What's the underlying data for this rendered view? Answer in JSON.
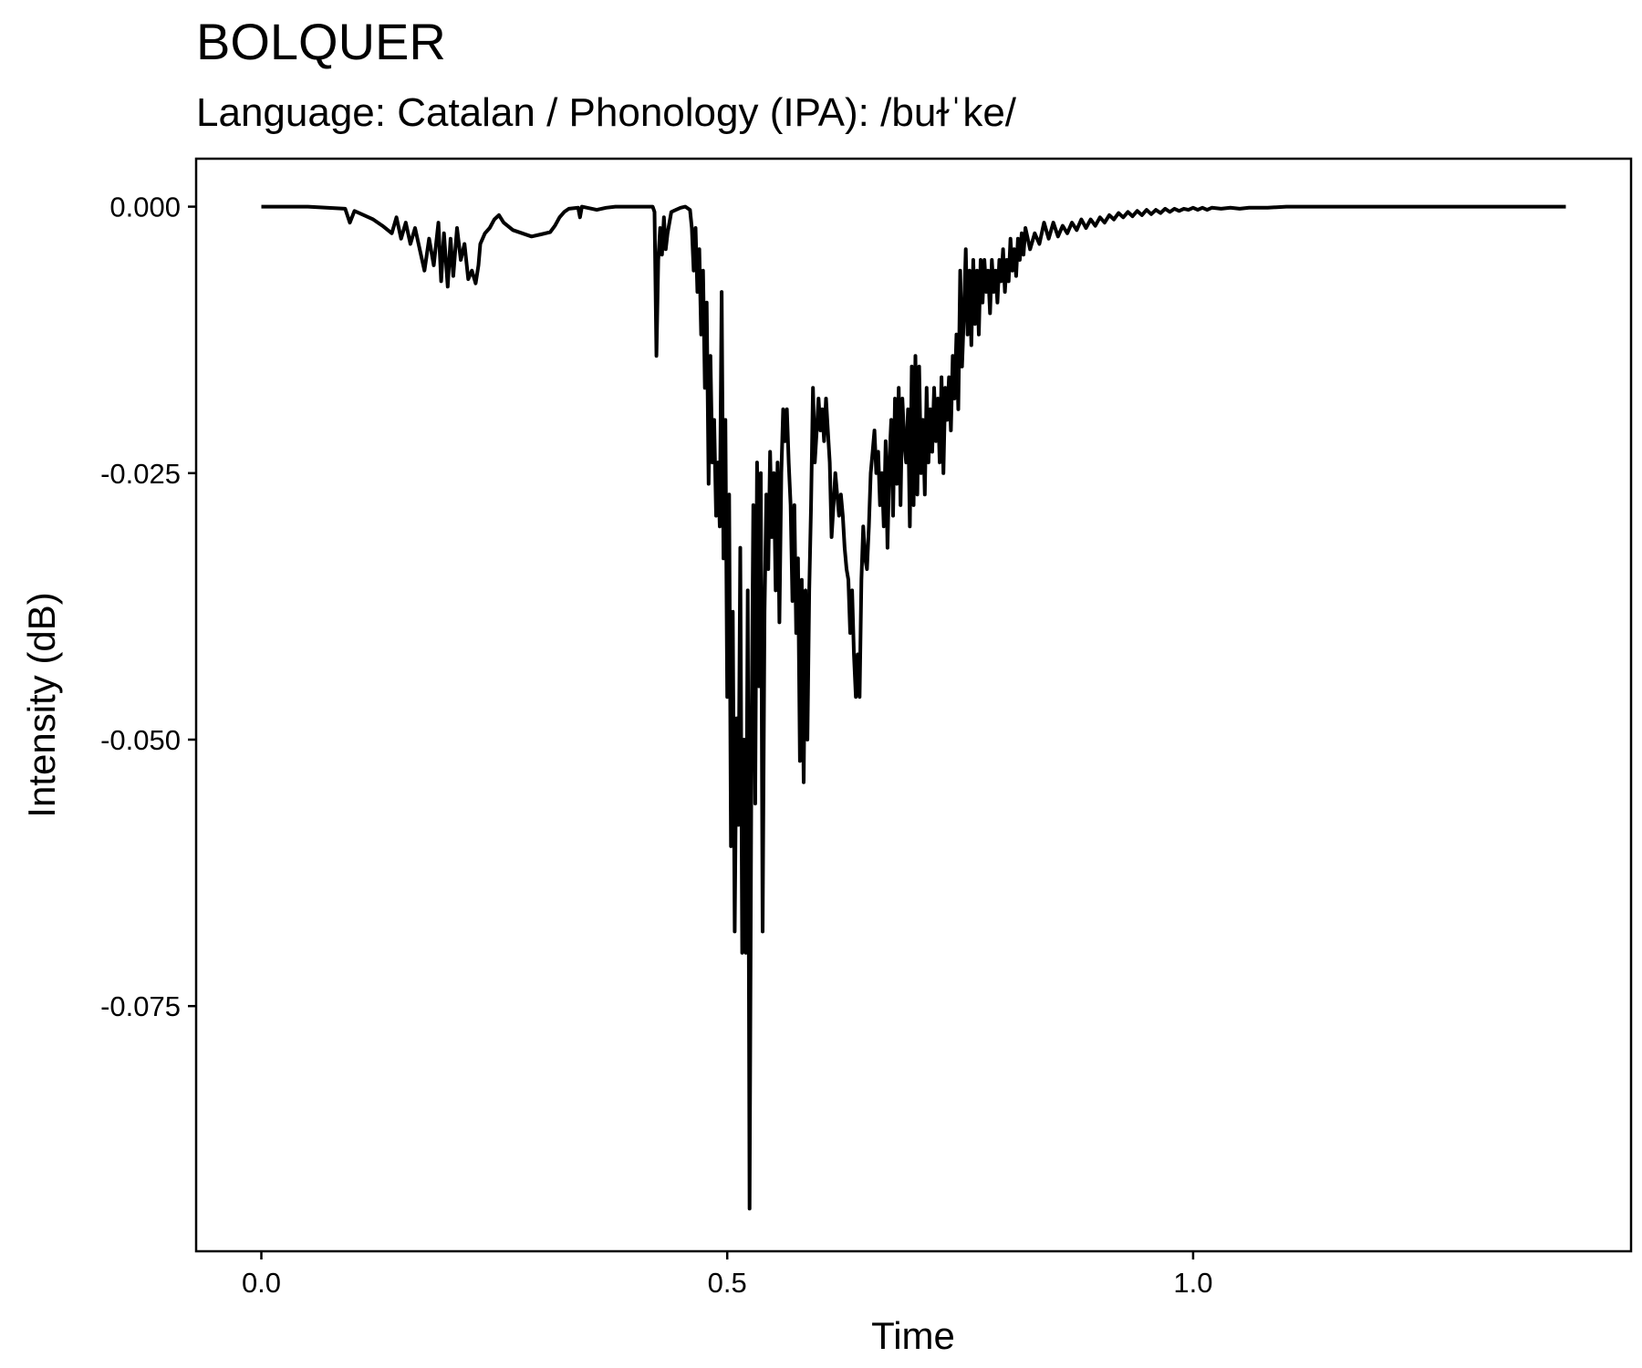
{
  "chart_data": {
    "type": "line",
    "title": "BOLQUER",
    "subtitle": "Language: Catalan / Phonology (IPA): /buɫˈke/",
    "xlabel": "Time",
    "ylabel": "Intensity (dB)",
    "xlim": [
      -0.07,
      1.47
    ],
    "ylim": [
      -0.098,
      0.0045
    ],
    "x_ticks": [
      0.0,
      0.5,
      1.0
    ],
    "x_tick_labels": [
      "0.0",
      "0.5",
      "1.0"
    ],
    "y_ticks": [
      0.0,
      -0.025,
      -0.05,
      -0.075
    ],
    "y_tick_labels": [
      "0.000",
      "-0.025",
      "-0.050",
      "-0.075"
    ],
    "grid": false,
    "line_color": "#000000",
    "series": [
      {
        "values": [
          [
            0.0,
            0.0
          ],
          [
            0.05,
            0.0
          ],
          [
            0.09,
            -0.0002
          ],
          [
            0.095,
            -0.0015
          ],
          [
            0.1,
            -0.0004
          ],
          [
            0.11,
            -0.0008
          ],
          [
            0.12,
            -0.0012
          ],
          [
            0.13,
            -0.0018
          ],
          [
            0.14,
            -0.0025
          ],
          [
            0.145,
            -0.001
          ],
          [
            0.15,
            -0.003
          ],
          [
            0.155,
            -0.0015
          ],
          [
            0.16,
            -0.0035
          ],
          [
            0.165,
            -0.002
          ],
          [
            0.17,
            -0.004
          ],
          [
            0.175,
            -0.006
          ],
          [
            0.18,
            -0.003
          ],
          [
            0.185,
            -0.0055
          ],
          [
            0.19,
            -0.0015
          ],
          [
            0.193,
            -0.007
          ],
          [
            0.196,
            -0.0025
          ],
          [
            0.2,
            -0.0075
          ],
          [
            0.203,
            -0.003
          ],
          [
            0.206,
            -0.0065
          ],
          [
            0.21,
            -0.002
          ],
          [
            0.214,
            -0.005
          ],
          [
            0.218,
            -0.0035
          ],
          [
            0.222,
            -0.0068
          ],
          [
            0.226,
            -0.006
          ],
          [
            0.23,
            -0.0072
          ],
          [
            0.233,
            -0.0055
          ],
          [
            0.235,
            -0.0035
          ],
          [
            0.24,
            -0.0025
          ],
          [
            0.245,
            -0.002
          ],
          [
            0.25,
            -0.0012
          ],
          [
            0.255,
            -0.0008
          ],
          [
            0.26,
            -0.0015
          ],
          [
            0.27,
            -0.0022
          ],
          [
            0.28,
            -0.0025
          ],
          [
            0.29,
            -0.0028
          ],
          [
            0.3,
            -0.0026
          ],
          [
            0.31,
            -0.0024
          ],
          [
            0.315,
            -0.0018
          ],
          [
            0.32,
            -0.001
          ],
          [
            0.325,
            -0.0005
          ],
          [
            0.33,
            -0.0002
          ],
          [
            0.34,
            -0.0001
          ],
          [
            0.342,
            -0.001
          ],
          [
            0.344,
            0.0
          ],
          [
            0.36,
            -0.0003
          ],
          [
            0.37,
            -0.0001
          ],
          [
            0.38,
            0.0
          ],
          [
            0.42,
            0.0
          ],
          [
            0.422,
            -0.0005
          ],
          [
            0.424,
            -0.014
          ],
          [
            0.426,
            -0.005
          ],
          [
            0.428,
            -0.002
          ],
          [
            0.43,
            -0.0045
          ],
          [
            0.432,
            -0.001
          ],
          [
            0.434,
            -0.004
          ],
          [
            0.436,
            -0.0025
          ],
          [
            0.44,
            -0.0005
          ],
          [
            0.445,
            -0.0003
          ],
          [
            0.45,
            -0.0001
          ],
          [
            0.455,
            0.0
          ],
          [
            0.46,
            -0.0003
          ],
          [
            0.462,
            -0.002
          ],
          [
            0.464,
            -0.006
          ],
          [
            0.466,
            -0.002
          ],
          [
            0.468,
            -0.008
          ],
          [
            0.47,
            -0.004
          ],
          [
            0.472,
            -0.012
          ],
          [
            0.474,
            -0.006
          ],
          [
            0.476,
            -0.017
          ],
          [
            0.478,
            -0.009
          ],
          [
            0.48,
            -0.026
          ],
          [
            0.482,
            -0.014
          ],
          [
            0.484,
            -0.024
          ],
          [
            0.486,
            -0.02
          ],
          [
            0.488,
            -0.029
          ],
          [
            0.49,
            -0.024
          ],
          [
            0.492,
            -0.03
          ],
          [
            0.494,
            -0.008
          ],
          [
            0.496,
            -0.033
          ],
          [
            0.498,
            -0.02
          ],
          [
            0.5,
            -0.046
          ],
          [
            0.502,
            -0.027
          ],
          [
            0.504,
            -0.06
          ],
          [
            0.506,
            -0.038
          ],
          [
            0.508,
            -0.068
          ],
          [
            0.51,
            -0.048
          ],
          [
            0.512,
            -0.058
          ],
          [
            0.514,
            -0.032
          ],
          [
            0.516,
            -0.07
          ],
          [
            0.518,
            -0.05
          ],
          [
            0.52,
            -0.07
          ],
          [
            0.522,
            -0.036
          ],
          [
            0.524,
            -0.094
          ],
          [
            0.526,
            -0.05
          ],
          [
            0.528,
            -0.028
          ],
          [
            0.53,
            -0.056
          ],
          [
            0.532,
            -0.024
          ],
          [
            0.534,
            -0.045
          ],
          [
            0.536,
            -0.025
          ],
          [
            0.538,
            -0.068
          ],
          [
            0.54,
            -0.038
          ],
          [
            0.542,
            -0.027
          ],
          [
            0.544,
            -0.034
          ],
          [
            0.546,
            -0.023
          ],
          [
            0.548,
            -0.031
          ],
          [
            0.55,
            -0.025
          ],
          [
            0.552,
            -0.036
          ],
          [
            0.554,
            -0.024
          ],
          [
            0.556,
            -0.039
          ],
          [
            0.558,
            -0.025
          ],
          [
            0.56,
            -0.019
          ],
          [
            0.562,
            -0.022
          ],
          [
            0.564,
            -0.019
          ],
          [
            0.566,
            -0.024
          ],
          [
            0.568,
            -0.028
          ],
          [
            0.57,
            -0.037
          ],
          [
            0.572,
            -0.028
          ],
          [
            0.574,
            -0.04
          ],
          [
            0.576,
            -0.033
          ],
          [
            0.578,
            -0.052
          ],
          [
            0.58,
            -0.035
          ],
          [
            0.582,
            -0.054
          ],
          [
            0.584,
            -0.036
          ],
          [
            0.586,
            -0.05
          ],
          [
            0.588,
            -0.036
          ],
          [
            0.59,
            -0.028
          ],
          [
            0.592,
            -0.017
          ],
          [
            0.594,
            -0.024
          ],
          [
            0.596,
            -0.021
          ],
          [
            0.598,
            -0.018
          ],
          [
            0.6,
            -0.021
          ],
          [
            0.602,
            -0.019
          ],
          [
            0.604,
            -0.022
          ],
          [
            0.606,
            -0.018
          ],
          [
            0.608,
            -0.021
          ],
          [
            0.61,
            -0.024
          ],
          [
            0.612,
            -0.031
          ],
          [
            0.614,
            -0.028
          ],
          [
            0.616,
            -0.025
          ],
          [
            0.618,
            -0.027
          ],
          [
            0.62,
            -0.029
          ],
          [
            0.622,
            -0.027
          ],
          [
            0.624,
            -0.029
          ],
          [
            0.626,
            -0.032
          ],
          [
            0.628,
            -0.034
          ],
          [
            0.63,
            -0.035
          ],
          [
            0.632,
            -0.04
          ],
          [
            0.634,
            -0.036
          ],
          [
            0.636,
            -0.042
          ],
          [
            0.638,
            -0.046
          ],
          [
            0.64,
            -0.042
          ],
          [
            0.642,
            -0.046
          ],
          [
            0.644,
            -0.035
          ],
          [
            0.646,
            -0.03
          ],
          [
            0.648,
            -0.033
          ],
          [
            0.65,
            -0.034
          ],
          [
            0.652,
            -0.03
          ],
          [
            0.654,
            -0.025
          ],
          [
            0.656,
            -0.023
          ],
          [
            0.658,
            -0.021
          ],
          [
            0.66,
            -0.025
          ],
          [
            0.662,
            -0.023
          ],
          [
            0.664,
            -0.028
          ],
          [
            0.666,
            -0.025
          ],
          [
            0.668,
            -0.03
          ],
          [
            0.67,
            -0.022
          ],
          [
            0.672,
            -0.032
          ],
          [
            0.674,
            -0.024
          ],
          [
            0.676,
            -0.02
          ],
          [
            0.678,
            -0.029
          ],
          [
            0.68,
            -0.018
          ],
          [
            0.682,
            -0.026
          ],
          [
            0.684,
            -0.017
          ],
          [
            0.686,
            -0.028
          ],
          [
            0.688,
            -0.018
          ],
          [
            0.69,
            -0.022
          ],
          [
            0.692,
            -0.024
          ],
          [
            0.694,
            -0.019
          ],
          [
            0.696,
            -0.03
          ],
          [
            0.698,
            -0.015
          ],
          [
            0.7,
            -0.028
          ],
          [
            0.702,
            -0.014
          ],
          [
            0.704,
            -0.027
          ],
          [
            0.706,
            -0.015
          ],
          [
            0.708,
            -0.025
          ],
          [
            0.71,
            -0.02
          ],
          [
            0.712,
            -0.027
          ],
          [
            0.714,
            -0.017
          ],
          [
            0.716,
            -0.024
          ],
          [
            0.718,
            -0.019
          ],
          [
            0.72,
            -0.023
          ],
          [
            0.722,
            -0.017
          ],
          [
            0.724,
            -0.022
          ],
          [
            0.726,
            -0.018
          ],
          [
            0.728,
            -0.024
          ],
          [
            0.73,
            -0.016
          ],
          [
            0.732,
            -0.025
          ],
          [
            0.734,
            -0.017
          ],
          [
            0.736,
            -0.02
          ],
          [
            0.738,
            -0.016
          ],
          [
            0.74,
            -0.021
          ],
          [
            0.742,
            -0.014
          ],
          [
            0.744,
            -0.018
          ],
          [
            0.746,
            -0.012
          ],
          [
            0.748,
            -0.019
          ],
          [
            0.75,
            -0.006
          ],
          [
            0.752,
            -0.015
          ],
          [
            0.754,
            -0.01
          ],
          [
            0.756,
            -0.004
          ],
          [
            0.758,
            -0.012
          ],
          [
            0.76,
            -0.006
          ],
          [
            0.762,
            -0.013
          ],
          [
            0.764,
            -0.005
          ],
          [
            0.766,
            -0.011
          ],
          [
            0.768,
            -0.006
          ],
          [
            0.77,
            -0.012
          ],
          [
            0.772,
            -0.005
          ],
          [
            0.774,
            -0.009
          ],
          [
            0.776,
            -0.005
          ],
          [
            0.778,
            -0.008
          ],
          [
            0.78,
            -0.006
          ],
          [
            0.782,
            -0.01
          ],
          [
            0.784,
            -0.005
          ],
          [
            0.786,
            -0.008
          ],
          [
            0.788,
            -0.006
          ],
          [
            0.79,
            -0.009
          ],
          [
            0.792,
            -0.005
          ],
          [
            0.794,
            -0.007
          ],
          [
            0.796,
            -0.004
          ],
          [
            0.798,
            -0.008
          ],
          [
            0.8,
            -0.005
          ],
          [
            0.802,
            -0.007
          ],
          [
            0.804,
            -0.003
          ],
          [
            0.806,
            -0.006
          ],
          [
            0.808,
            -0.004
          ],
          [
            0.81,
            -0.0065
          ],
          [
            0.812,
            -0.003
          ],
          [
            0.814,
            -0.005
          ],
          [
            0.816,
            -0.0025
          ],
          [
            0.818,
            -0.0045
          ],
          [
            0.82,
            -0.002
          ],
          [
            0.825,
            -0.004
          ],
          [
            0.83,
            -0.0025
          ],
          [
            0.835,
            -0.0035
          ],
          [
            0.84,
            -0.0015
          ],
          [
            0.845,
            -0.003
          ],
          [
            0.85,
            -0.0015
          ],
          [
            0.855,
            -0.0028
          ],
          [
            0.86,
            -0.0018
          ],
          [
            0.865,
            -0.0025
          ],
          [
            0.87,
            -0.0015
          ],
          [
            0.875,
            -0.0022
          ],
          [
            0.88,
            -0.0012
          ],
          [
            0.885,
            -0.002
          ],
          [
            0.89,
            -0.0012
          ],
          [
            0.895,
            -0.0018
          ],
          [
            0.9,
            -0.001
          ],
          [
            0.905,
            -0.0015
          ],
          [
            0.91,
            -0.0008
          ],
          [
            0.915,
            -0.0012
          ],
          [
            0.92,
            -0.0006
          ],
          [
            0.925,
            -0.001
          ],
          [
            0.93,
            -0.0005
          ],
          [
            0.935,
            -0.0009
          ],
          [
            0.94,
            -0.0004
          ],
          [
            0.945,
            -0.0008
          ],
          [
            0.95,
            -0.0003
          ],
          [
            0.955,
            -0.0007
          ],
          [
            0.96,
            -0.0003
          ],
          [
            0.965,
            -0.0006
          ],
          [
            0.97,
            -0.0002
          ],
          [
            0.975,
            -0.0005
          ],
          [
            0.98,
            -0.0002
          ],
          [
            0.985,
            -0.0004
          ],
          [
            0.99,
            -0.0002
          ],
          [
            0.995,
            -0.0003
          ],
          [
            1.0,
            -0.0001
          ],
          [
            1.005,
            -0.0003
          ],
          [
            1.01,
            -0.0001
          ],
          [
            1.015,
            -0.0003
          ],
          [
            1.02,
            -0.0001
          ],
          [
            1.03,
            -0.0002
          ],
          [
            1.04,
            -0.0001
          ],
          [
            1.05,
            -0.0002
          ],
          [
            1.06,
            -0.0001
          ],
          [
            1.08,
            -0.0001
          ],
          [
            1.1,
            0.0
          ],
          [
            1.2,
            0.0
          ],
          [
            1.3,
            0.0
          ],
          [
            1.35,
            0.0
          ],
          [
            1.4,
            0.0
          ]
        ]
      }
    ]
  }
}
